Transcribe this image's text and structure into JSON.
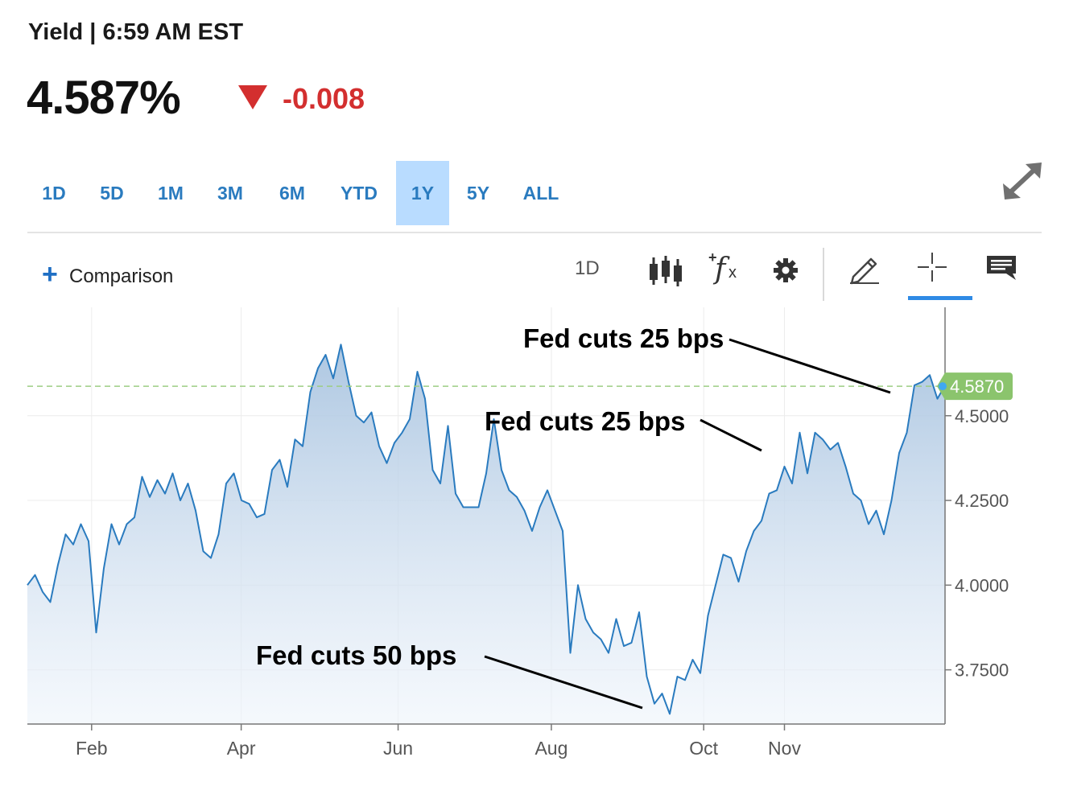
{
  "header": {
    "title": "Yield | 6:59 AM EST",
    "price": "4.587%",
    "change": "-0.008",
    "change_color": "#d32f2f"
  },
  "range_tabs": [
    {
      "label": "1D",
      "active": false
    },
    {
      "label": "5D",
      "active": false
    },
    {
      "label": "1M",
      "active": false
    },
    {
      "label": "3M",
      "active": false
    },
    {
      "label": "6M",
      "active": false
    },
    {
      "label": "YTD",
      "active": false
    },
    {
      "label": "1Y",
      "active": true
    },
    {
      "label": "5Y",
      "active": false
    },
    {
      "label": "ALL",
      "active": false
    }
  ],
  "toolbar": {
    "comparison_label": "Comparison",
    "interval_label": "1D",
    "icons": [
      "expand-icon",
      "candlestick-icon",
      "function-icon",
      "gear-icon",
      "pencil-icon",
      "crosshair-icon",
      "comment-icon"
    ]
  },
  "chart_data": {
    "type": "area",
    "title": "",
    "xlabel": "",
    "ylabel": "",
    "x_ticks": [
      "Feb",
      "Apr",
      "Jun",
      "Aug",
      "Oct",
      "Nov"
    ],
    "y_ticks": [
      "4.5000",
      "4.2500",
      "4.0000",
      "3.7500"
    ],
    "ylim": [
      3.59,
      4.82
    ],
    "line_color": "#2a7bbf",
    "fill_color": "#a9c4e0",
    "grid": true,
    "y_axis_side": "right",
    "last_value_label": "4.5870",
    "last_value": 4.587,
    "last_value_color": "#8bc46d",
    "series": [
      {
        "values": [
          4.0,
          4.03,
          3.98,
          3.95,
          4.06,
          4.15,
          4.12,
          4.18,
          4.13,
          3.86,
          4.05,
          4.18,
          4.12,
          4.18,
          4.2,
          4.32,
          4.26,
          4.31,
          4.27,
          4.33,
          4.25,
          4.3,
          4.22,
          4.1,
          4.08,
          4.15,
          4.3,
          4.33,
          4.25,
          4.24,
          4.2,
          4.21,
          4.34,
          4.37,
          4.29,
          4.43,
          4.41,
          4.57,
          4.64,
          4.68,
          4.61,
          4.71,
          4.6,
          4.5,
          4.48,
          4.51,
          4.41,
          4.36,
          4.42,
          4.45,
          4.49,
          4.63,
          4.55,
          4.34,
          4.3,
          4.47,
          4.27,
          4.23,
          4.23,
          4.23,
          4.33,
          4.49,
          4.34,
          4.28,
          4.26,
          4.22,
          4.16,
          4.23,
          4.28,
          4.22,
          4.16,
          3.8,
          4.0,
          3.9,
          3.86,
          3.84,
          3.8,
          3.9,
          3.82,
          3.83,
          3.92,
          3.73,
          3.65,
          3.68,
          3.62,
          3.73,
          3.72,
          3.78,
          3.74,
          3.91,
          4.0,
          4.09,
          4.08,
          4.01,
          4.1,
          4.16,
          4.19,
          4.27,
          4.28,
          4.35,
          4.3,
          4.45,
          4.33,
          4.45,
          4.43,
          4.4,
          4.42,
          4.35,
          4.27,
          4.25,
          4.18,
          4.22,
          4.15,
          4.25,
          4.39,
          4.45,
          4.59,
          4.6,
          4.62,
          4.55,
          4.59
        ]
      }
    ],
    "annotations": [
      {
        "text": "Fed cuts 50 bps"
      },
      {
        "text": "Fed cuts 25 bps"
      },
      {
        "text": "Fed cuts 25 bps"
      }
    ]
  }
}
